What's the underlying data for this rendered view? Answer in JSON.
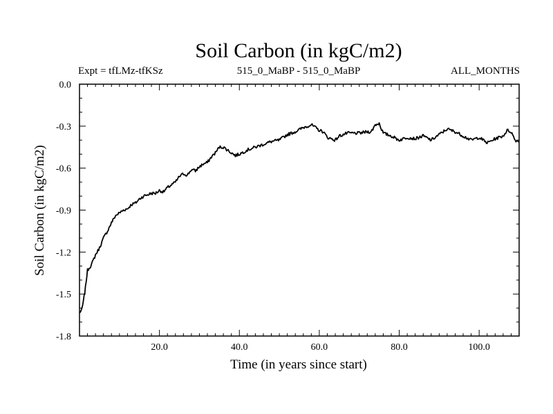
{
  "chart_data": {
    "type": "line",
    "title": "Soil Carbon (in kgC/m2)",
    "subtitle_left": "Expt = tfLMz-tfKSz",
    "subtitle_center": "515_0_MaBP - 515_0_MaBP",
    "subtitle_right": "ALL_MONTHS",
    "xlabel": "Time (in years since start)",
    "ylabel": "Soil Carbon (in kgC/m2)",
    "xlim": [
      0,
      110
    ],
    "ylim": [
      -1.8,
      0.0
    ],
    "xticks": [
      20,
      40,
      60,
      80,
      100
    ],
    "xtick_labels": [
      "20.0",
      "40.0",
      "60.0",
      "80.0",
      "100.0"
    ],
    "yticks": [
      0.0,
      -0.3,
      -0.6,
      -0.9,
      -1.2,
      -1.5,
      -1.8
    ],
    "ytick_labels": [
      "0.0",
      "-0.3",
      "-0.6",
      "-0.9",
      "-1.2",
      "-1.5",
      "-1.8"
    ],
    "series": [
      {
        "name": "Soil Carbon",
        "x": [
          0,
          0.5,
          1,
          1.5,
          2,
          3,
          4,
          5,
          6,
          7,
          8,
          9,
          10,
          11,
          12,
          13,
          14,
          15,
          16,
          17,
          18,
          19,
          20,
          21,
          22,
          23,
          24,
          25,
          26,
          27,
          28,
          29,
          30,
          31,
          32,
          33,
          34,
          35,
          36,
          37,
          38,
          39,
          40,
          42,
          44,
          46,
          48,
          50,
          52,
          54,
          56,
          57,
          58,
          59,
          60,
          61,
          62,
          63,
          64,
          65,
          66,
          67,
          68,
          70,
          72,
          73,
          74,
          75,
          76,
          77,
          78,
          80,
          82,
          84,
          86,
          88,
          90,
          92,
          94,
          96,
          98,
          100,
          102,
          104,
          106,
          107,
          108,
          109,
          110
        ],
        "values": [
          -1.63,
          -1.62,
          -1.55,
          -1.45,
          -1.33,
          -1.29,
          -1.22,
          -1.17,
          -1.1,
          -1.05,
          -0.99,
          -0.94,
          -0.92,
          -0.9,
          -0.89,
          -0.86,
          -0.85,
          -0.82,
          -0.8,
          -0.79,
          -0.78,
          -0.78,
          -0.76,
          -0.77,
          -0.74,
          -0.72,
          -0.7,
          -0.66,
          -0.64,
          -0.65,
          -0.61,
          -0.62,
          -0.59,
          -0.57,
          -0.56,
          -0.52,
          -0.49,
          -0.45,
          -0.45,
          -0.47,
          -0.49,
          -0.51,
          -0.5,
          -0.47,
          -0.45,
          -0.43,
          -0.41,
          -0.4,
          -0.36,
          -0.34,
          -0.31,
          -0.3,
          -0.29,
          -0.31,
          -0.33,
          -0.34,
          -0.38,
          -0.39,
          -0.4,
          -0.37,
          -0.36,
          -0.35,
          -0.35,
          -0.35,
          -0.34,
          -0.34,
          -0.29,
          -0.28,
          -0.35,
          -0.36,
          -0.37,
          -0.4,
          -0.38,
          -0.39,
          -0.37,
          -0.4,
          -0.36,
          -0.32,
          -0.34,
          -0.37,
          -0.4,
          -0.38,
          -0.42,
          -0.39,
          -0.37,
          -0.33,
          -0.34,
          -0.4,
          -0.41
        ]
      }
    ]
  }
}
